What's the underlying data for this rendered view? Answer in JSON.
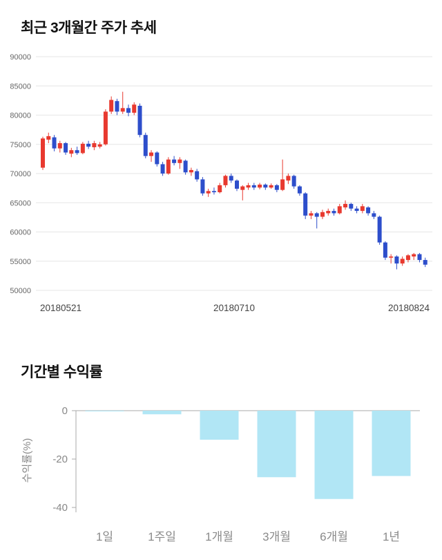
{
  "chart_data": [
    {
      "type": "candlestick",
      "title": "최근 3개월간 주가 추세",
      "ylim": [
        50000,
        90000
      ],
      "yticks": [
        90000,
        85000,
        80000,
        75000,
        70000,
        65000,
        60000,
        55000,
        50000
      ],
      "xticks": [
        "20180521",
        "20180710",
        "20180824"
      ],
      "up_color": "#e8392f",
      "down_color": "#2d4ecb",
      "grid_color": "#e6e6e6",
      "candles": [
        [
          71000,
          76300,
          70600,
          76000
        ],
        [
          75800,
          77000,
          75200,
          76400
        ],
        [
          76200,
          76600,
          73800,
          74300
        ],
        [
          74300,
          75600,
          73600,
          75200
        ],
        [
          75200,
          75400,
          73200,
          73600
        ],
        [
          73400,
          74400,
          72800,
          74000
        ],
        [
          74000,
          74600,
          73200,
          73500
        ],
        [
          73500,
          75400,
          73300,
          75100
        ],
        [
          75100,
          75600,
          74200,
          74600
        ],
        [
          74500,
          75600,
          74000,
          75200
        ],
        [
          74600,
          75400,
          74300,
          75000
        ],
        [
          75000,
          81000,
          74800,
          80600
        ],
        [
          80600,
          83200,
          80200,
          82600
        ],
        [
          82400,
          82800,
          80000,
          80600
        ],
        [
          80600,
          84000,
          80200,
          81200
        ],
        [
          81200,
          81800,
          79800,
          80400
        ],
        [
          80400,
          82200,
          80000,
          81800
        ],
        [
          81600,
          82000,
          76200,
          76600
        ],
        [
          76600,
          77000,
          72600,
          73000
        ],
        [
          73000,
          74000,
          72000,
          73600
        ],
        [
          73600,
          73800,
          71200,
          71600
        ],
        [
          71600,
          72000,
          69600,
          70000
        ],
        [
          70000,
          72800,
          69800,
          72400
        ],
        [
          72400,
          73000,
          71400,
          71800
        ],
        [
          71800,
          72800,
          70800,
          72400
        ],
        [
          72200,
          72400,
          69800,
          70200
        ],
        [
          70200,
          71000,
          69600,
          70600
        ],
        [
          70400,
          70800,
          68600,
          69000
        ],
        [
          69000,
          69400,
          66200,
          66600
        ],
        [
          66600,
          67400,
          66000,
          67000
        ],
        [
          67000,
          67600,
          66400,
          66800
        ],
        [
          66800,
          68400,
          66600,
          68000
        ],
        [
          68000,
          69800,
          67600,
          69600
        ],
        [
          69600,
          70000,
          68400,
          68800
        ],
        [
          68800,
          69000,
          67000,
          67400
        ],
        [
          67200,
          68000,
          65400,
          67800
        ],
        [
          67600,
          68400,
          67200,
          68000
        ],
        [
          68000,
          68400,
          67200,
          67600
        ],
        [
          67600,
          68400,
          67300,
          68100
        ],
        [
          68100,
          68300,
          67200,
          67600
        ],
        [
          67600,
          68300,
          67400,
          68000
        ],
        [
          68000,
          68200,
          66800,
          67200
        ],
        [
          67200,
          72400,
          67000,
          69000
        ],
        [
          68800,
          70000,
          68200,
          69600
        ],
        [
          69600,
          69800,
          67400,
          67800
        ],
        [
          67800,
          68000,
          66200,
          66600
        ],
        [
          66600,
          66800,
          62200,
          62800
        ],
        [
          62800,
          63600,
          62200,
          63200
        ],
        [
          63200,
          63400,
          60600,
          62600
        ],
        [
          62600,
          63800,
          62200,
          63400
        ],
        [
          63200,
          64000,
          62800,
          63600
        ],
        [
          63600,
          64000,
          62800,
          63200
        ],
        [
          63200,
          64800,
          63000,
          64400
        ],
        [
          64200,
          65400,
          63800,
          64800
        ],
        [
          64800,
          65000,
          63600,
          64000
        ],
        [
          64000,
          64400,
          63200,
          63600
        ],
        [
          63600,
          64800,
          63200,
          64400
        ],
        [
          64200,
          64400,
          62800,
          63200
        ],
        [
          63200,
          63600,
          62200,
          62600
        ],
        [
          62600,
          62800,
          57800,
          58200
        ],
        [
          58200,
          58400,
          55200,
          55600
        ],
        [
          55600,
          56200,
          54600,
          55800
        ],
        [
          55800,
          56000,
          53600,
          54600
        ],
        [
          54600,
          55800,
          54200,
          55400
        ],
        [
          55200,
          56200,
          54800,
          56000
        ],
        [
          55800,
          56400,
          55200,
          56200
        ],
        [
          56200,
          56400,
          54800,
          55200
        ],
        [
          55200,
          55600,
          54000,
          54400
        ]
      ]
    },
    {
      "type": "bar",
      "title": "기간별 수익률",
      "ylabel": "수익률(%)",
      "categories": [
        "1일",
        "1주일",
        "1개월",
        "3개월",
        "6개월",
        "1년"
      ],
      "values": [
        -0.3,
        -1.5,
        -12,
        -27.5,
        -36.5,
        -27
      ],
      "yticks": [
        0,
        -20,
        -40
      ],
      "ylim": [
        -40,
        0
      ],
      "bar_color": "#b1e6f5",
      "axis_color": "#aaaaaa",
      "legend": "none",
      "grid": "off"
    }
  ]
}
